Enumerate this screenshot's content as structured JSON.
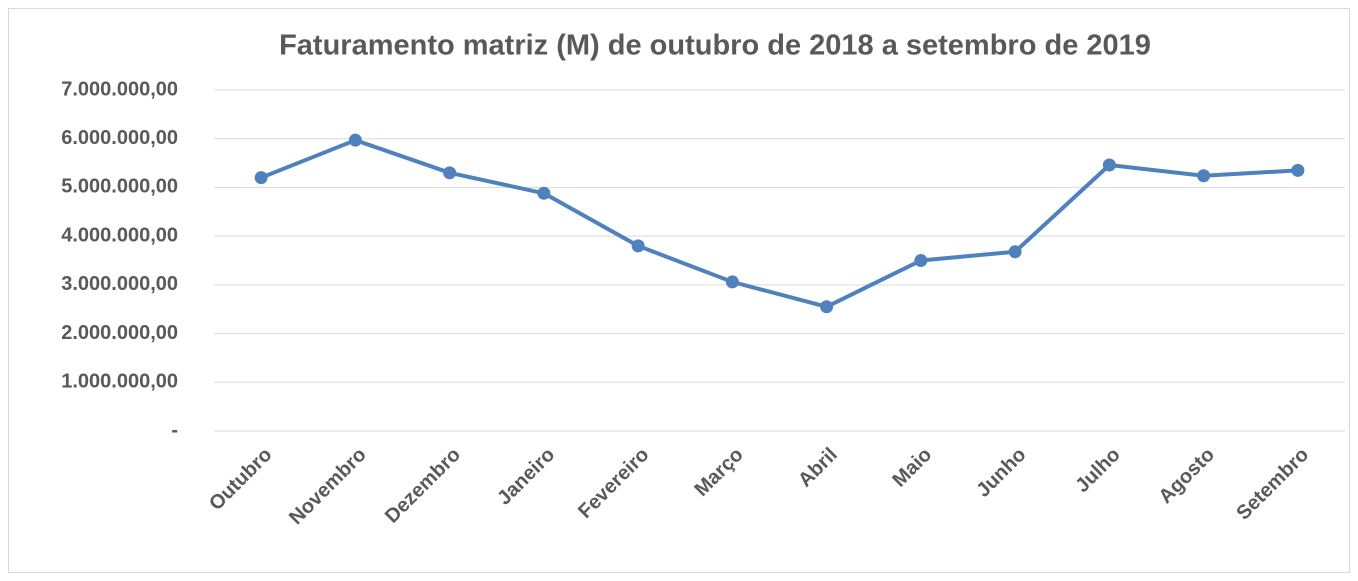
{
  "chart_data": {
    "type": "line",
    "title": "Faturamento matriz (M) de outubro de 2018 a setembro de 2019",
    "categories": [
      "Outubro",
      "Novembro",
      "Dezembro",
      "Janeiro",
      "Fevereiro",
      "Março",
      "Abril",
      "Maio",
      "Junho",
      "Julho",
      "Agosto",
      "Setembro"
    ],
    "series": [
      {
        "color": "#4f81bd",
        "values": [
          5200000,
          5970000,
          5300000,
          4880000,
          3800000,
          3060000,
          2550000,
          3500000,
          3680000,
          5460000,
          5240000,
          5350000
        ]
      }
    ],
    "ylim": [
      0,
      7000000
    ],
    "yticks": [
      {
        "value": 0,
        "label": "-"
      },
      {
        "value": 1000000,
        "label": "1.000.000,00"
      },
      {
        "value": 2000000,
        "label": "2.000.000,00"
      },
      {
        "value": 3000000,
        "label": "3.000.000,00"
      },
      {
        "value": 4000000,
        "label": "4.000.000,00"
      },
      {
        "value": 5000000,
        "label": "5.000.000,00"
      },
      {
        "value": 6000000,
        "label": "6.000.000,00"
      },
      {
        "value": 7000000,
        "label": "7.000.000,00"
      }
    ],
    "grid": true
  }
}
